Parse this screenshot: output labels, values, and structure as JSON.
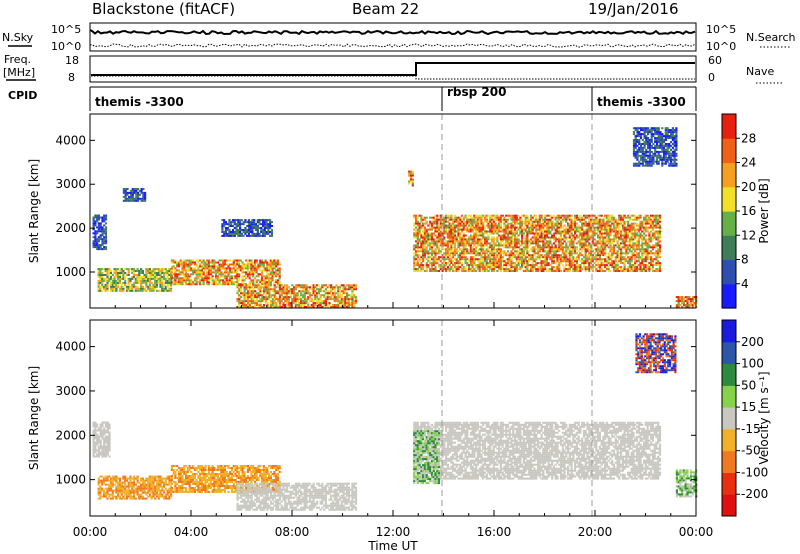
{
  "header": {
    "station": "Blackstone (fitACF)",
    "beam": "Beam 22",
    "date": "19/Jan/2016"
  },
  "status_panels": {
    "nsky_label": "N.Sky",
    "nsky_ticks": [
      "10^5",
      "10^0"
    ],
    "nsearch_label": "N.Search",
    "nsearch_ticks": [
      "10^5",
      "10^0"
    ],
    "freq_label": "Freq.",
    "freq_unit": "[MHz]",
    "freq_ticks": [
      "18",
      "8"
    ],
    "nave_label": "Nave",
    "nave_ticks": [
      "60",
      "0"
    ],
    "cpid_label": "CPID",
    "cpid_segments": [
      {
        "label": "themis -3300",
        "start_h": 0
      },
      {
        "label": "rbsp 200",
        "start_h": 14
      },
      {
        "label": "themis -3300",
        "start_h": 20
      }
    ]
  },
  "chart_data": [
    {
      "type": "heatmap",
      "name": "power",
      "ylabel": "Slant Range [km]",
      "colorbar_label": "Power [dB]",
      "colorbar_ticks": [
        "4",
        "8",
        "12",
        "16",
        "20",
        "24",
        "28"
      ],
      "colorbar_colors": [
        "#1a1aff",
        "#2e4fb0",
        "#3e7d55",
        "#66b04a",
        "#f2e028",
        "#f5a020",
        "#f06018",
        "#e82010"
      ],
      "ylim": [
        180,
        4600
      ],
      "yticks": [
        1000,
        2000,
        3000,
        4000
      ],
      "xlim": [
        0,
        24
      ],
      "echo_regions": [
        {
          "t0": 0.1,
          "t1": 0.6,
          "r0": 1500,
          "r1": 2300,
          "level": "low"
        },
        {
          "t0": 0.3,
          "t1": 3.2,
          "r0": 550,
          "r1": 1050,
          "level": "mid"
        },
        {
          "t0": 3.2,
          "t1": 7.5,
          "r0": 700,
          "r1": 1250,
          "level": "high"
        },
        {
          "t0": 5.8,
          "t1": 10.5,
          "r0": 180,
          "r1": 700,
          "level": "high"
        },
        {
          "t0": 1.3,
          "t1": 2.2,
          "r0": 2600,
          "r1": 2900,
          "level": "low"
        },
        {
          "t0": 5.2,
          "t1": 7.2,
          "r0": 1800,
          "r1": 2200,
          "level": "low"
        },
        {
          "t0": 12.8,
          "t1": 22.6,
          "r0": 1000,
          "r1": 2300,
          "level": "high"
        },
        {
          "t0": 12.6,
          "t1": 12.8,
          "r0": 2950,
          "r1": 3300,
          "level": "high"
        },
        {
          "t0": 23.2,
          "t1": 24,
          "r0": 180,
          "r1": 450,
          "level": "high"
        },
        {
          "t0": 21.5,
          "t1": 23.2,
          "r0": 3400,
          "r1": 4300,
          "level": "low"
        }
      ]
    },
    {
      "type": "heatmap",
      "name": "velocity",
      "ylabel": "Slant Range [km]",
      "colorbar_label": "Velocity [m s⁻¹]",
      "colorbar_ticks": [
        "200",
        "100",
        "50",
        "15",
        "-15",
        "-50",
        "-100",
        "-200"
      ],
      "colorbar_colors": [
        "#1b1be0",
        "#2c56a8",
        "#2e8a3e",
        "#86d24a",
        "#c8c8c0",
        "#f0b028",
        "#f07a20",
        "#e83010",
        "#e01010"
      ],
      "ylim": [
        180,
        4600
      ],
      "yticks": [
        1000,
        2000,
        3000,
        4000
      ],
      "xlim": [
        0,
        24
      ],
      "echo_regions": [
        {
          "t0": 0.1,
          "t1": 0.8,
          "r0": 1500,
          "r1": 2300,
          "level": "grey"
        },
        {
          "t0": 0.3,
          "t1": 3.2,
          "r0": 550,
          "r1": 1050,
          "level": "orange"
        },
        {
          "t0": 3.2,
          "t1": 7.5,
          "r0": 700,
          "r1": 1300,
          "level": "orange"
        },
        {
          "t0": 5.8,
          "t1": 10.5,
          "r0": 300,
          "r1": 900,
          "level": "grey"
        },
        {
          "t0": 12.8,
          "t1": 22.6,
          "r0": 1000,
          "r1": 2300,
          "level": "grey"
        },
        {
          "t0": 12.8,
          "t1": 13.8,
          "r0": 900,
          "r1": 2100,
          "level": "green"
        },
        {
          "t0": 23.2,
          "t1": 24,
          "r0": 600,
          "r1": 1200,
          "level": "green"
        },
        {
          "t0": 21.6,
          "t1": 23.2,
          "r0": 3400,
          "r1": 4300,
          "level": "blue"
        }
      ]
    }
  ],
  "time_axis": {
    "ticks": [
      "00:00",
      "04:00",
      "08:00",
      "12:00",
      "16:00",
      "20:00",
      "00:00"
    ],
    "label": "Time UT"
  }
}
